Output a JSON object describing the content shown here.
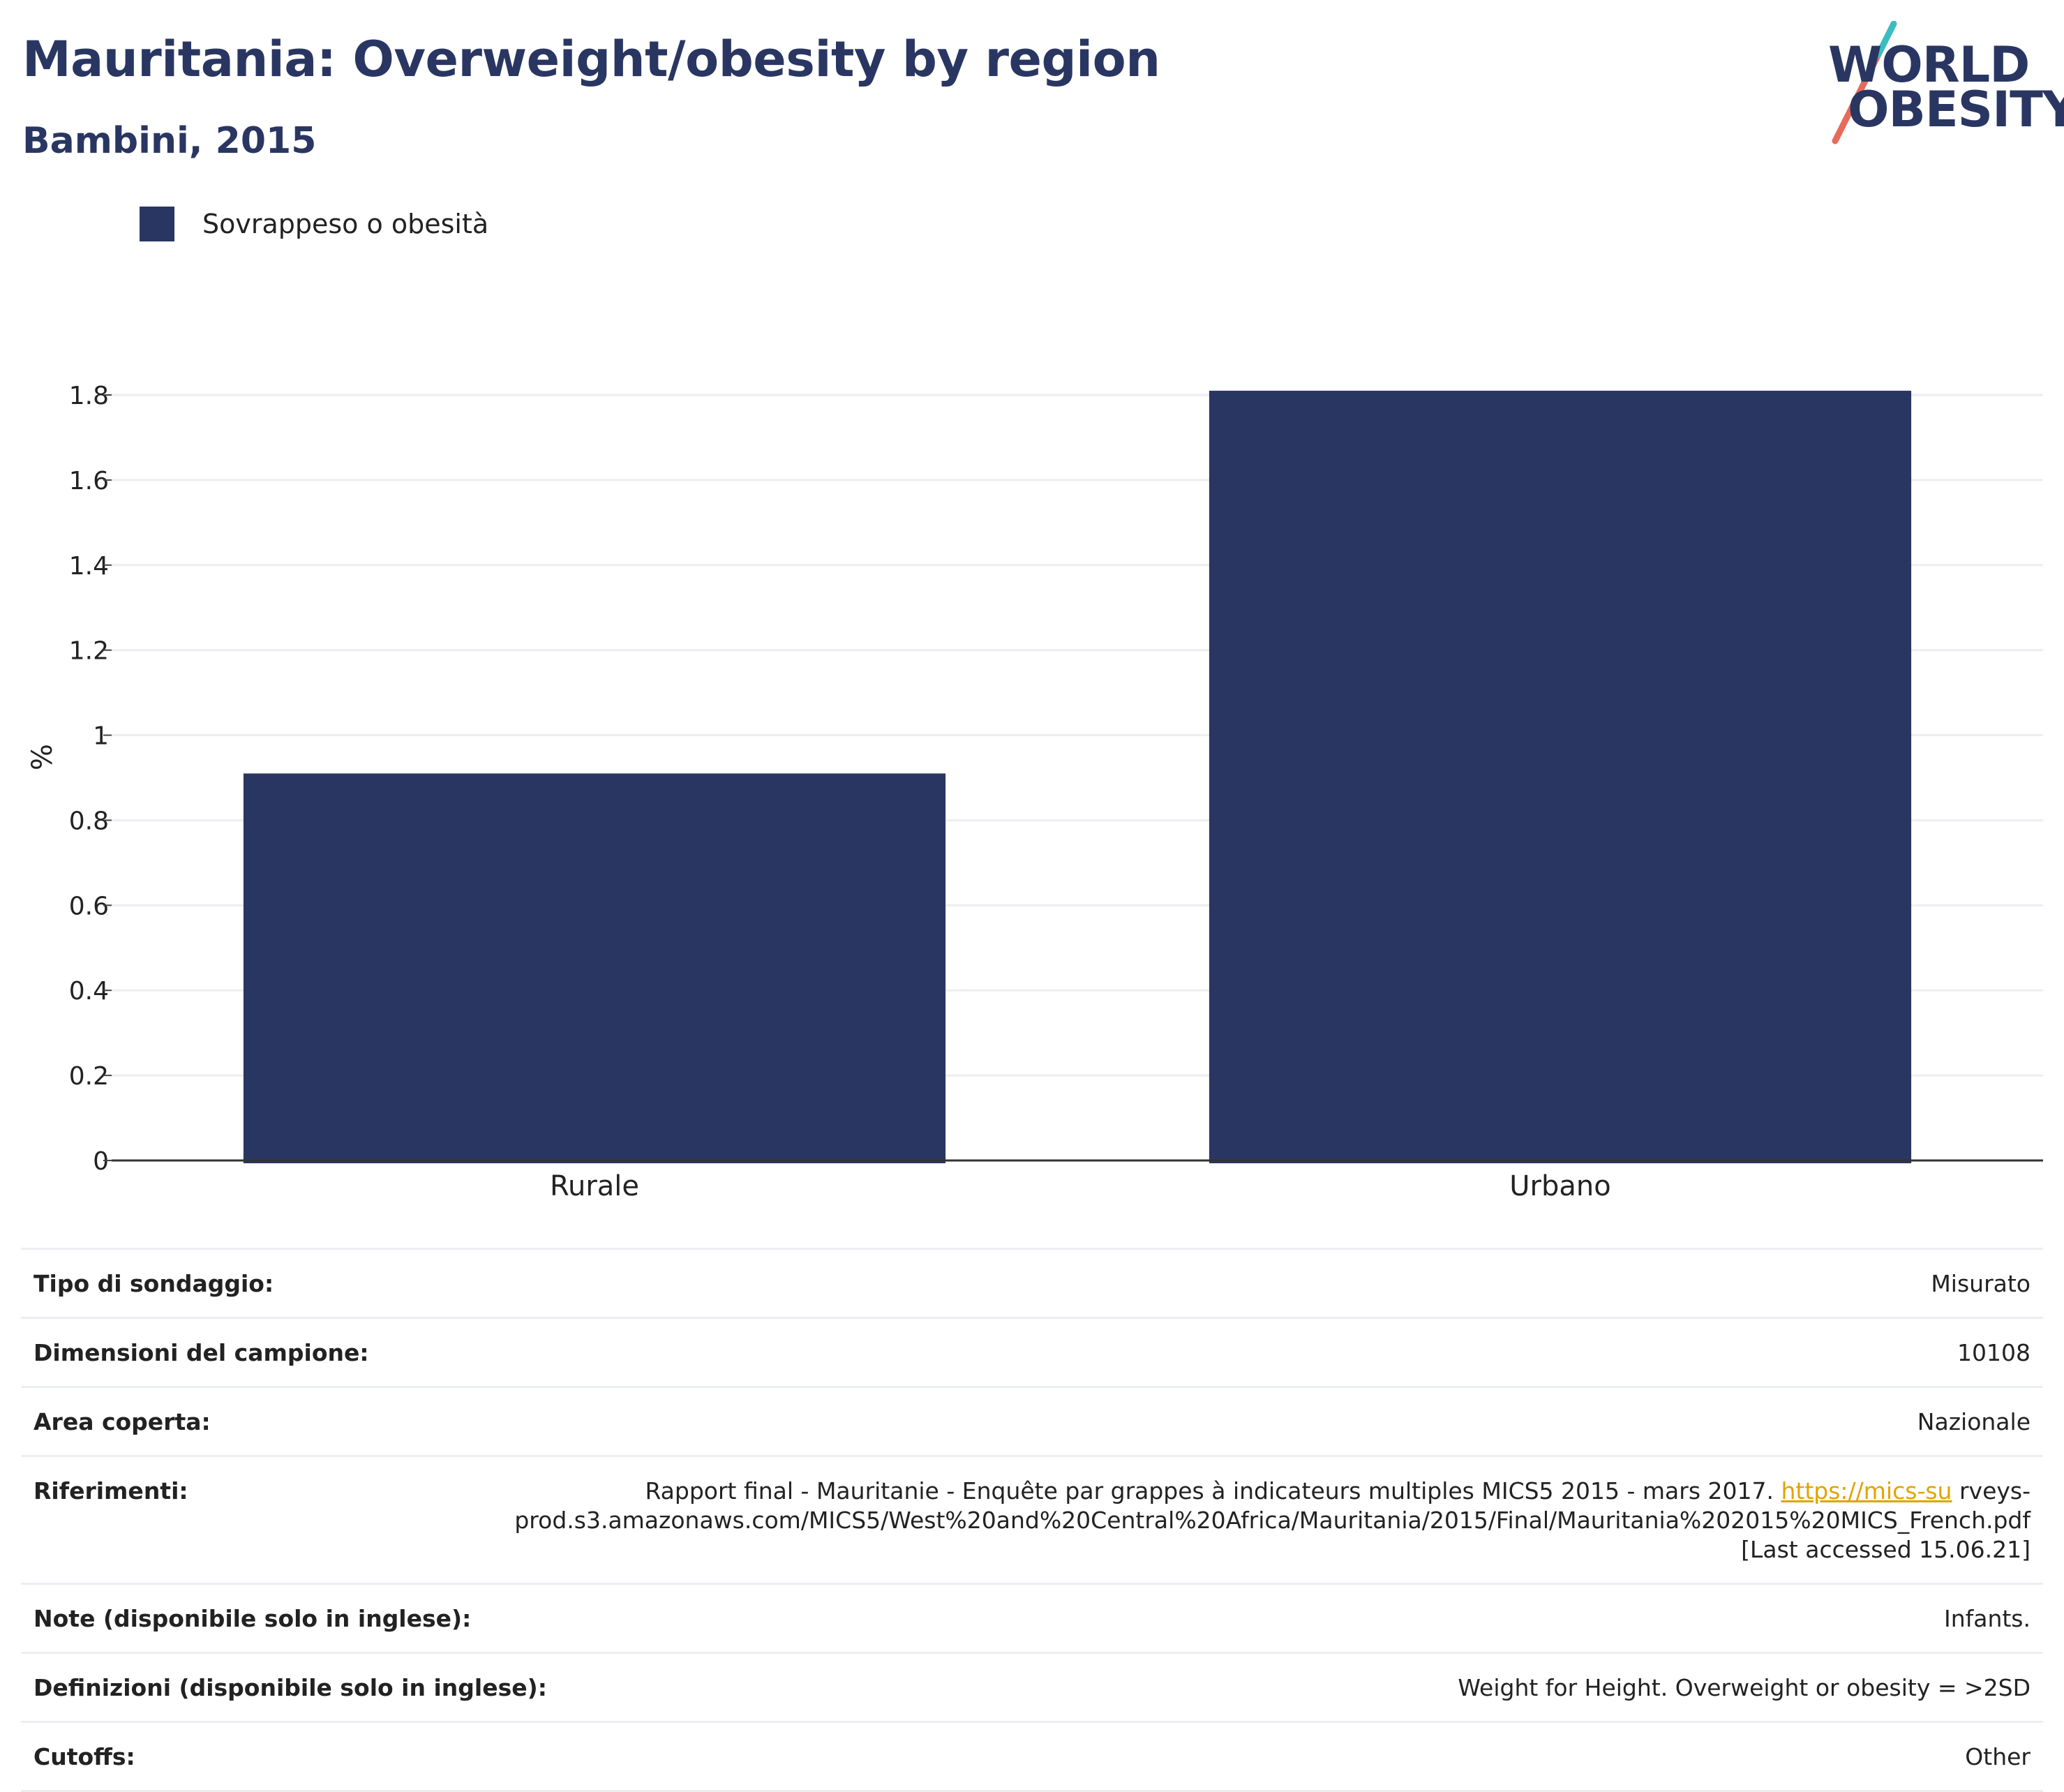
{
  "header": {
    "title": "Mauritania: Overweight/obesity by region",
    "subtitle": "Bambini, 2015",
    "logo_line1": "WORLD",
    "logo_line2": "OBESITY"
  },
  "legend": {
    "label": "Sovrappeso o obesità",
    "color": "#2a3662"
  },
  "chart_data": {
    "type": "bar",
    "categories": [
      "Rurale",
      "Urbano"
    ],
    "series": [
      {
        "name": "Sovrappeso o obesità",
        "values": [
          0.91,
          1.81
        ],
        "color": "#2a3662"
      }
    ],
    "ylabel": "%",
    "ylim": [
      0,
      1.8
    ],
    "yticks": [
      "0",
      "0.2",
      "0.4",
      "0.6",
      "0.8",
      "1",
      "1.2",
      "1.4",
      "1.6",
      "1.8"
    ],
    "grid": true
  },
  "info": {
    "survey_type_label": "Tipo di sondaggio:",
    "survey_type_value": "Misurato",
    "sample_size_label": "Dimensioni del campione:",
    "sample_size_value": "10108",
    "area_label": "Area coperta:",
    "area_value": "Nazionale",
    "references_label": "Riferimenti:",
    "references_text": "Rapport final - Mauritanie - Enquête par grappes à indicateurs multiples MICS5 2015 - mars 2017. ",
    "references_link": "https://mics-su",
    "references_rest": "rveys-prod.s3.amazonaws.com/MICS5/West%20and%20Central%20Africa/Mauritania/2015/Final/Mauritania%202015%20MICS_French.pdf",
    "references_accessed": "[Last accessed 15.06.21]",
    "notes_label": "Note (disponibile solo in inglese):",
    "notes_value": "Infants.",
    "definitions_label": "Definizioni (disponibile solo in inglese):",
    "definitions_value": "Weight for Height. Overweight or obesity = >2SD",
    "cutoffs_label": "Cutoffs:",
    "cutoffs_value": "Other"
  }
}
